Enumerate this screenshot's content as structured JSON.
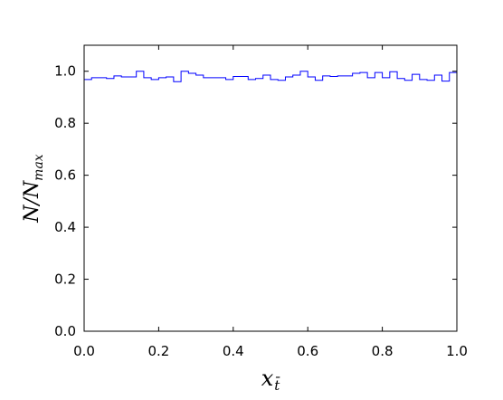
{
  "chart_data": {
    "type": "step",
    "xlabel": "x_t̄",
    "ylabel": "N/N_max",
    "xlim": [
      0.0,
      1.0
    ],
    "ylim": [
      0.0,
      1.1
    ],
    "x_ticks": [
      "0.0",
      "0.2",
      "0.4",
      "0.6",
      "0.8",
      "1.0"
    ],
    "y_ticks": [
      "0.0",
      "0.2",
      "0.4",
      "0.6",
      "0.8",
      "1.0"
    ],
    "grid": false,
    "line_color": "#0000ff",
    "series": [
      {
        "x_edges": [
          0.0,
          0.02,
          0.04,
          0.06,
          0.08,
          0.1,
          0.12,
          0.14,
          0.16,
          0.18,
          0.2,
          0.22,
          0.24,
          0.26,
          0.28,
          0.3,
          0.32,
          0.34,
          0.36,
          0.38,
          0.4,
          0.42,
          0.44,
          0.46,
          0.48,
          0.5,
          0.52,
          0.54,
          0.56,
          0.58,
          0.6,
          0.62,
          0.64,
          0.66,
          0.68,
          0.7,
          0.72,
          0.74,
          0.76,
          0.78,
          0.8,
          0.82,
          0.84,
          0.86,
          0.88,
          0.9,
          0.92,
          0.94,
          0.96,
          0.98,
          1.0
        ],
        "values": [
          0.968,
          0.975,
          0.975,
          0.972,
          0.982,
          0.978,
          0.978,
          1.0,
          0.975,
          0.968,
          0.975,
          0.978,
          0.96,
          1.0,
          0.992,
          0.985,
          0.975,
          0.975,
          0.975,
          0.968,
          0.98,
          0.98,
          0.968,
          0.972,
          0.985,
          0.968,
          0.965,
          0.978,
          0.985,
          1.0,
          0.978,
          0.965,
          0.982,
          0.98,
          0.982,
          0.982,
          0.992,
          0.995,
          0.975,
          0.995,
          0.975,
          0.998,
          0.972,
          0.965,
          0.988,
          0.968,
          0.965,
          0.985,
          0.962,
          0.995
        ]
      }
    ]
  }
}
